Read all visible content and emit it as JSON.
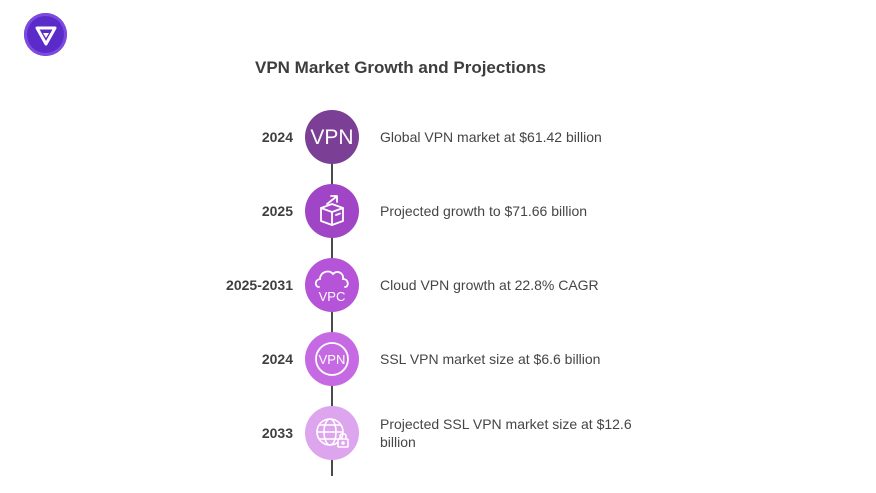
{
  "title": "VPN Market Growth and Projections",
  "logo": {
    "icon": "shield-logo-icon",
    "color": "#5b2bc9"
  },
  "colors": {
    "node_1": "#7b3f95",
    "node_2": "#a145c7",
    "node_3": "#b554d8",
    "node_4": "#c66ae3",
    "node_5": "#dea5ef",
    "text": "#454545",
    "spine": "#4a4a4a"
  },
  "timeline": [
    {
      "year": "2024",
      "icon": "vpn-text-icon",
      "icon_text": "VPN",
      "description": "Global VPN market at $61.42 billion"
    },
    {
      "year": "2025",
      "icon": "growth-box-icon",
      "description": "Projected growth to $71.66 billion"
    },
    {
      "year": "2025-2031",
      "icon": "cloud-vpc-icon",
      "icon_text": "VPC",
      "description": "Cloud VPN growth at 22.8% CAGR"
    },
    {
      "year": "2024",
      "icon": "vpn-circle-icon",
      "icon_text": "VPN",
      "description": "SSL VPN market size at $6.6 billion"
    },
    {
      "year": "2033",
      "icon": "globe-lock-icon",
      "description": "Projected SSL VPN market size at $12.6 billion"
    }
  ]
}
